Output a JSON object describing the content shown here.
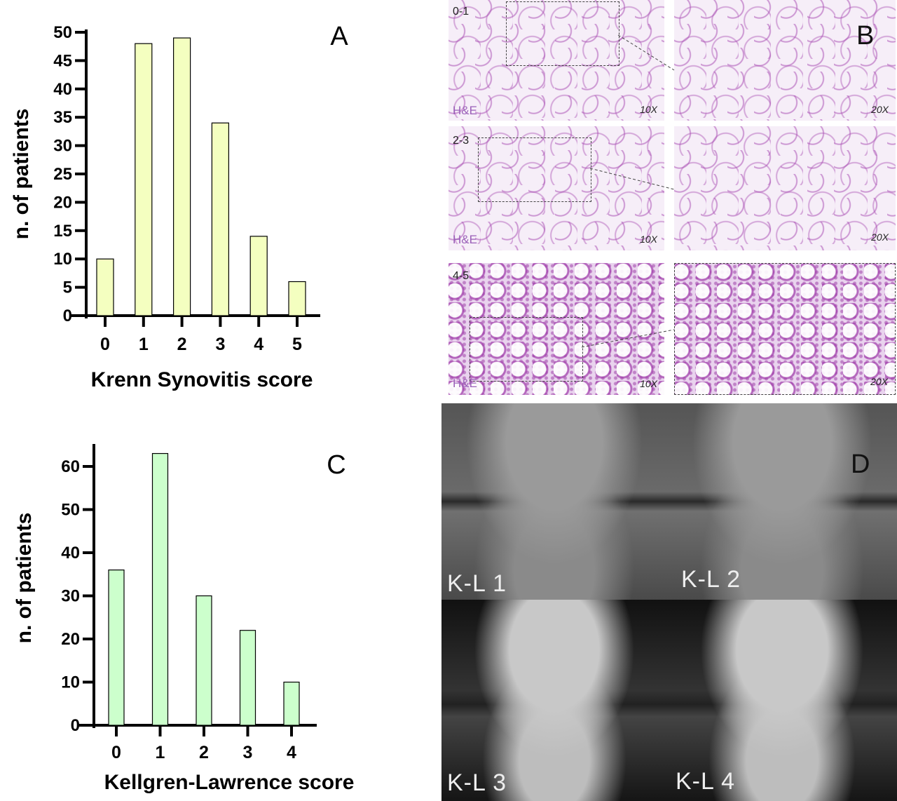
{
  "chart_data": [
    {
      "type": "bar",
      "panel": "A",
      "categories": [
        "0",
        "1",
        "2",
        "3",
        "4",
        "5"
      ],
      "values": [
        10,
        48,
        49,
        34,
        14,
        6
      ],
      "xlabel": "Krenn Synovitis score",
      "ylabel": "n. of patients",
      "ylim": [
        0,
        50
      ],
      "yticks": [
        0,
        5,
        10,
        15,
        20,
        25,
        30,
        35,
        40,
        45,
        50
      ],
      "bar_color": "#f4ffc0",
      "grid": false
    },
    {
      "type": "bar",
      "panel": "C",
      "categories": [
        "0",
        "1",
        "2",
        "3",
        "4"
      ],
      "values": [
        36,
        63,
        30,
        22,
        10
      ],
      "xlabel": "Kellgren-Lawrence score",
      "ylabel": "n. of patients",
      "ylim": [
        0,
        65
      ],
      "yticks": [
        0,
        10,
        20,
        30,
        40,
        50,
        60
      ],
      "bar_color": "#ccffcc",
      "grid": false
    }
  ],
  "panel_b": {
    "letter": "B",
    "rows": [
      {
        "score": "0-1",
        "stain": "H&E",
        "mag_low": "10X",
        "mag_high": "20X"
      },
      {
        "score": "2-3",
        "stain": "H&E",
        "mag_low": "10X",
        "mag_high": "20X"
      },
      {
        "score": "4-5",
        "stain": "H&E",
        "mag_low": "10X",
        "mag_high": "20X"
      }
    ]
  },
  "panel_d": {
    "letter": "D",
    "labels": [
      "K-L 1",
      "K-L 2",
      "K-L 3",
      "K-L 4"
    ]
  }
}
